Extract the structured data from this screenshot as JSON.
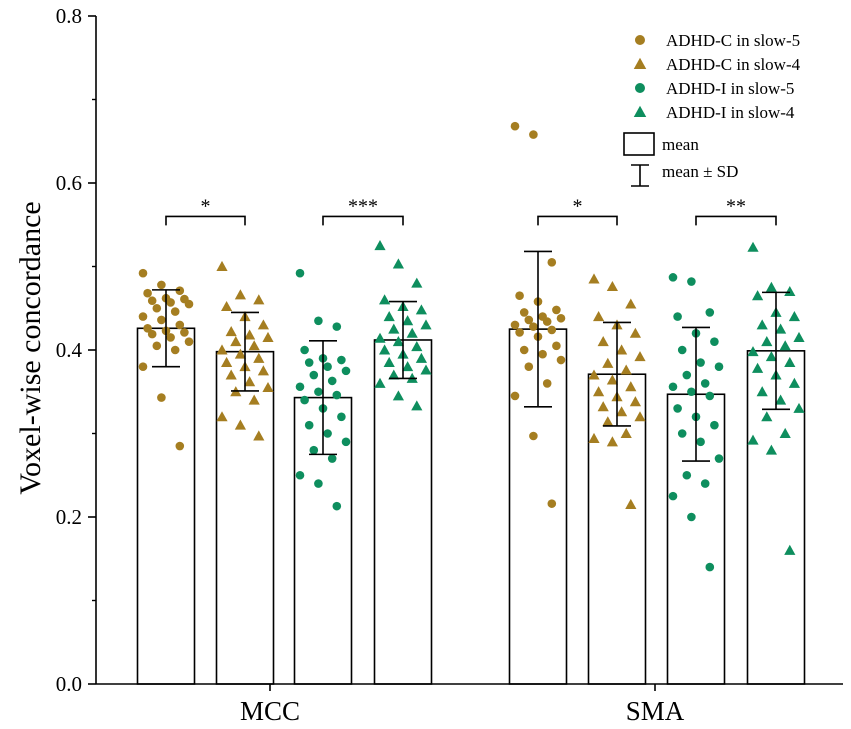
{
  "chart_data": {
    "type": "bar",
    "ylabel": "Voxel-wise concordance",
    "xlabel": "",
    "ylim": [
      0,
      0.8
    ],
    "yticks": [
      "0.0",
      "0.2",
      "0.4",
      "0.6",
      "0.8"
    ],
    "categories": [
      "MCC",
      "SMA"
    ],
    "colors": {
      "adhd_c": "#A57E21",
      "adhd_i": "#0E8E5E"
    },
    "series": [
      {
        "name": "ADHD-C in slow-5",
        "marker": "circle",
        "group": "adhd_c",
        "means": [
          0.426,
          0.425
        ],
        "sd": [
          0.046,
          0.093
        ],
        "points": [
          [
            0.492,
            0.478,
            0.471,
            0.468,
            0.462,
            0.461,
            0.459,
            0.457,
            0.455,
            0.45,
            0.446,
            0.44,
            0.436,
            0.43,
            0.426,
            0.423,
            0.421,
            0.419,
            0.415,
            0.41,
            0.405,
            0.4,
            0.38,
            0.343,
            0.285
          ],
          [
            0.668,
            0.658,
            0.505,
            0.465,
            0.458,
            0.448,
            0.445,
            0.44,
            0.438,
            0.436,
            0.434,
            0.43,
            0.428,
            0.424,
            0.421,
            0.416,
            0.405,
            0.4,
            0.395,
            0.388,
            0.38,
            0.36,
            0.345,
            0.297,
            0.216
          ]
        ]
      },
      {
        "name": "ADHD-C in slow-4",
        "marker": "triangle",
        "group": "adhd_c",
        "means": [
          0.398,
          0.371
        ],
        "sd": [
          0.047,
          0.062
        ],
        "points": [
          [
            0.5,
            0.466,
            0.46,
            0.452,
            0.44,
            0.43,
            0.422,
            0.418,
            0.415,
            0.41,
            0.405,
            0.4,
            0.395,
            0.39,
            0.385,
            0.38,
            0.375,
            0.37,
            0.362,
            0.355,
            0.35,
            0.34,
            0.32,
            0.31,
            0.297
          ],
          [
            0.485,
            0.476,
            0.455,
            0.44,
            0.43,
            0.42,
            0.41,
            0.4,
            0.392,
            0.384,
            0.376,
            0.37,
            0.364,
            0.356,
            0.35,
            0.344,
            0.338,
            0.332,
            0.326,
            0.32,
            0.314,
            0.3,
            0.294,
            0.29,
            0.215
          ]
        ]
      },
      {
        "name": "ADHD-I in slow-5",
        "marker": "circle",
        "group": "adhd_i",
        "means": [
          0.343,
          0.347
        ],
        "sd": [
          0.068,
          0.08
        ],
        "points": [
          [
            0.492,
            0.435,
            0.428,
            0.4,
            0.39,
            0.388,
            0.385,
            0.38,
            0.375,
            0.37,
            0.363,
            0.356,
            0.35,
            0.346,
            0.34,
            0.33,
            0.32,
            0.31,
            0.3,
            0.29,
            0.28,
            0.27,
            0.25,
            0.24,
            0.213
          ],
          [
            0.487,
            0.482,
            0.445,
            0.44,
            0.42,
            0.41,
            0.4,
            0.385,
            0.38,
            0.37,
            0.36,
            0.356,
            0.35,
            0.345,
            0.33,
            0.32,
            0.31,
            0.3,
            0.29,
            0.27,
            0.25,
            0.24,
            0.225,
            0.2,
            0.14
          ]
        ]
      },
      {
        "name": "ADHD-I in slow-4",
        "marker": "triangle",
        "group": "adhd_i",
        "means": [
          0.412,
          0.399
        ],
        "sd": [
          0.046,
          0.07
        ],
        "points": [
          [
            0.525,
            0.503,
            0.48,
            0.46,
            0.452,
            0.448,
            0.44,
            0.435,
            0.43,
            0.425,
            0.42,
            0.414,
            0.41,
            0.404,
            0.4,
            0.395,
            0.39,
            0.385,
            0.38,
            0.376,
            0.37,
            0.366,
            0.36,
            0.345,
            0.333
          ],
          [
            0.523,
            0.475,
            0.47,
            0.465,
            0.445,
            0.44,
            0.43,
            0.425,
            0.415,
            0.41,
            0.405,
            0.398,
            0.392,
            0.385,
            0.378,
            0.37,
            0.36,
            0.35,
            0.34,
            0.33,
            0.32,
            0.3,
            0.292,
            0.28,
            0.16
          ]
        ]
      }
    ],
    "significance": [
      {
        "category": "MCC",
        "pair": [
          "ADHD-C in slow-5",
          "ADHD-C in slow-4"
        ],
        "label": "*"
      },
      {
        "category": "MCC",
        "pair": [
          "ADHD-I in slow-5",
          "ADHD-I in slow-4"
        ],
        "label": "***"
      },
      {
        "category": "SMA",
        "pair": [
          "ADHD-C in slow-5",
          "ADHD-C in slow-4"
        ],
        "label": "*"
      },
      {
        "category": "SMA",
        "pair": [
          "ADHD-I in slow-5",
          "ADHD-I in slow-4"
        ],
        "label": "**"
      }
    ],
    "legend": {
      "position": "top-right",
      "entries": [
        "ADHD-C in slow-5",
        "ADHD-C in slow-4",
        "ADHD-I in slow-5",
        "ADHD-I in slow-4",
        "mean",
        "mean ± SD"
      ]
    }
  }
}
